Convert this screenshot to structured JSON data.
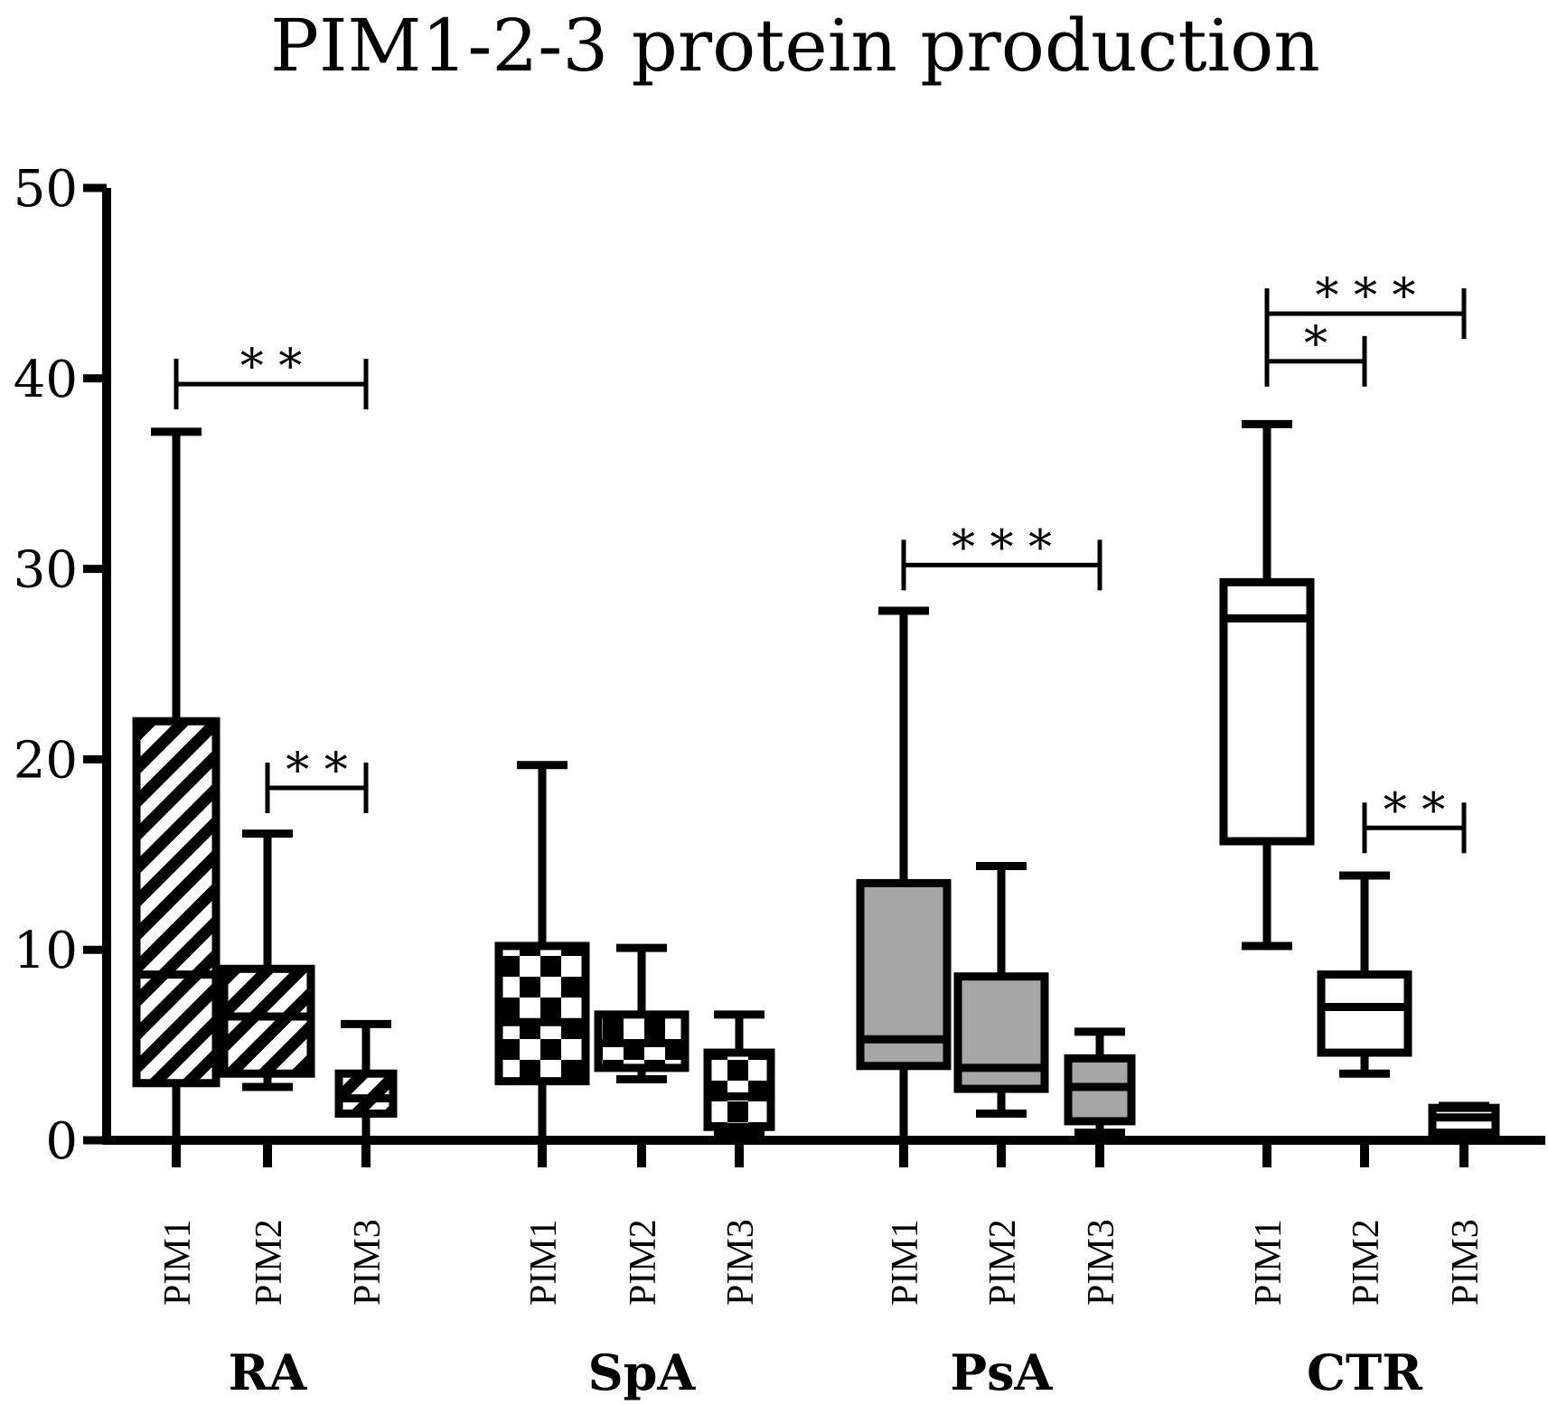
{
  "chart_data": {
    "type": "box",
    "title": "PIM1-2-3 protein production",
    "xlabel": "",
    "ylabel": "",
    "ylim": [
      0,
      50
    ],
    "yticks": [
      "0",
      "10",
      "20",
      "30",
      "40",
      "50"
    ],
    "groups": [
      {
        "name": "RA",
        "fill": "diagonal-hatch",
        "boxes": [
          {
            "label": "PIM1",
            "min": 0,
            "q1": 3,
            "median": 8.7,
            "q3": 22,
            "max": 37.2
          },
          {
            "label": "PIM2",
            "min": 2.8,
            "q1": 3.5,
            "median": 6.5,
            "q3": 9,
            "max": 16.1
          },
          {
            "label": "PIM3",
            "min": 0,
            "q1": 1.4,
            "median": 2.2,
            "q3": 3.5,
            "max": 6.1
          }
        ],
        "significance": [
          {
            "from": "PIM1",
            "to": "PIM3",
            "label": "* *",
            "level": 39.7
          },
          {
            "from": "PIM2",
            "to": "PIM3",
            "label": "* *",
            "level": 18.5
          }
        ]
      },
      {
        "name": "SpA",
        "fill": "checkerboard",
        "boxes": [
          {
            "label": "PIM1",
            "min": 0,
            "q1": 3.1,
            "median": 6.2,
            "q3": 10.2,
            "max": 19.7
          },
          {
            "label": "PIM2",
            "min": 3.2,
            "q1": 3.8,
            "median": 5.1,
            "q3": 6.6,
            "max": 10.1
          },
          {
            "label": "PIM3",
            "min": 0.3,
            "q1": 0.7,
            "median": 2.3,
            "q3": 4.6,
            "max": 6.6
          }
        ],
        "significance": []
      },
      {
        "name": "PsA",
        "fill": "#a6a6a6",
        "boxes": [
          {
            "label": "PIM1",
            "min": 0,
            "q1": 3.9,
            "median": 5.3,
            "q3": 13.5,
            "max": 27.8
          },
          {
            "label": "PIM2",
            "min": 1.4,
            "q1": 2.7,
            "median": 3.8,
            "q3": 8.6,
            "max": 14.4
          },
          {
            "label": "PIM3",
            "min": 0.4,
            "q1": 1,
            "median": 2.8,
            "q3": 4.3,
            "max": 5.7
          }
        ],
        "significance": [
          {
            "from": "PIM1",
            "to": "PIM3",
            "label": "* * *",
            "level": 30.2
          }
        ]
      },
      {
        "name": "CTR",
        "fill": "#ffffff",
        "boxes": [
          {
            "label": "PIM1",
            "min": 10.2,
            "q1": 15.7,
            "median": 27.4,
            "q3": 29.3,
            "max": 37.6
          },
          {
            "label": "PIM2",
            "min": 3.5,
            "q1": 4.6,
            "median": 7,
            "q3": 8.7,
            "max": 13.9
          },
          {
            "label": "PIM3",
            "min": 0,
            "q1": 0.4,
            "median": 1.2,
            "q3": 1.7,
            "max": 1.8
          }
        ],
        "significance": [
          {
            "from": "PIM1",
            "to": "PIM3",
            "label": "* * *",
            "level": 43.4
          },
          {
            "from": "PIM1",
            "to": "PIM2",
            "label": "*",
            "level": 40.9
          },
          {
            "from": "PIM2",
            "to": "PIM3",
            "label": "* *",
            "level": 16.4
          }
        ]
      }
    ]
  }
}
